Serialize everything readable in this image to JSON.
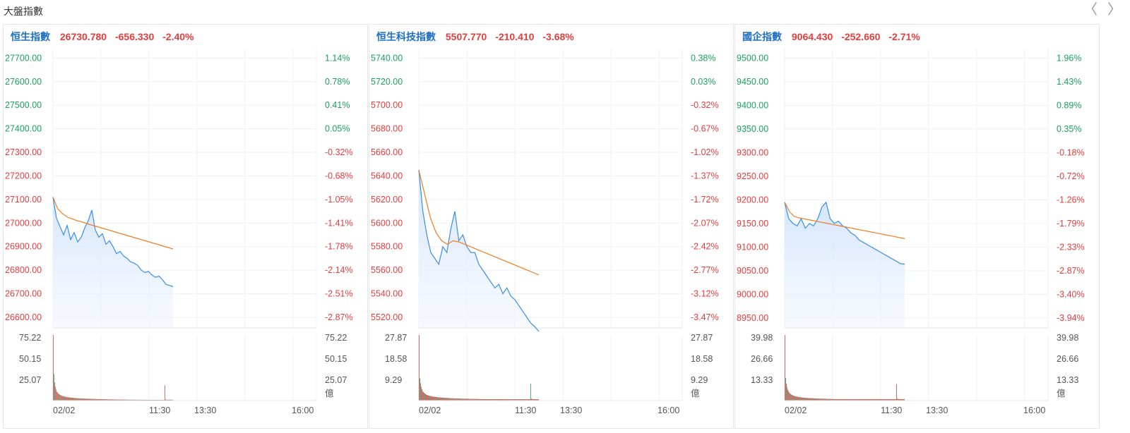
{
  "header": {
    "title": "大盤指數"
  },
  "nav": {
    "prev_icon": "〈",
    "next_icon": "〉"
  },
  "colors": {
    "name": "#1d6fc4",
    "down": "#e83b3b",
    "up": "#19a15f",
    "price_line": "#3a8ee6",
    "avg_line": "#f07c22",
    "grid": "#eef0f3"
  },
  "chart_data": [
    {
      "type": "line",
      "name": "恒生指數",
      "last": "26730.780",
      "change": "-656.330",
      "pct": "-2.40%",
      "price_ticks": [
        "27700.00",
        "27600.00",
        "27500.00",
        "27400.00",
        "27300.00",
        "27200.00",
        "27100.00",
        "27000.00",
        "26900.00",
        "26800.00",
        "26700.00",
        "26600.00"
      ],
      "pct_ticks": [
        "1.14%",
        "0.78%",
        "0.41%",
        "0.05%",
        "-0.32%",
        "-0.68%",
        "-1.05%",
        "-1.41%",
        "-1.78%",
        "-2.14%",
        "-2.51%",
        "-2.87%"
      ],
      "vol_ticks": [
        "75.22",
        "50.15",
        "25.07"
      ],
      "vol_unit": "億",
      "x_ticks": [
        "02/02",
        "11:30",
        "13:30",
        "16:00"
      ],
      "ylim": [
        26555,
        27740
      ],
      "vol_max": 75.22,
      "price": [
        27110,
        27020,
        26985,
        26950,
        26990,
        26930,
        26960,
        26920,
        26940,
        26980,
        27010,
        27055,
        26970,
        26940,
        26955,
        26910,
        26925,
        26900,
        26870,
        26880,
        26860,
        26850,
        26835,
        26830,
        26820,
        26800,
        26790,
        26795,
        26780,
        26770,
        26775,
        26760,
        26740,
        26735,
        26730
      ],
      "avg": [
        27110,
        27060,
        27040,
        27025,
        27018,
        27010,
        27005,
        26998,
        26992,
        26986,
        26980,
        26974,
        26968,
        26962,
        26956,
        26950,
        26944,
        26938,
        26932,
        26926,
        26920,
        26914,
        26908,
        26902,
        26896,
        26890
      ],
      "volume": [
        75.22,
        30.5,
        21.0,
        15.8,
        12.6,
        10.2,
        9.1,
        8.4,
        7.5,
        7.0,
        6.6,
        6.1,
        5.8,
        5.4,
        5.1,
        4.9,
        4.7,
        4.5,
        4.3,
        4.1,
        3.9,
        3.8,
        3.7,
        3.6,
        3.5,
        3.4,
        3.3,
        3.2,
        3.2,
        3.1,
        3.0,
        2.9,
        2.9,
        2.8,
        2.8,
        2.7,
        2.7,
        2.6,
        2.6,
        2.5,
        2.5,
        2.4,
        2.4,
        2.3,
        2.3,
        2.3,
        2.2,
        2.2,
        2.2,
        2.1,
        2.1,
        2.1,
        2.0,
        2.0,
        2.0,
        1.9,
        1.9,
        1.9,
        1.9,
        1.8,
        1.8,
        1.8,
        1.8,
        1.7,
        1.7,
        1.7,
        1.7,
        1.7,
        1.6,
        1.6,
        1.6,
        1.6,
        1.6,
        1.5,
        1.5,
        1.5,
        1.5,
        1.5,
        1.4,
        1.4,
        1.4,
        1.4,
        1.4,
        1.4,
        1.3,
        1.3,
        1.3,
        1.3,
        1.3,
        1.3,
        1.3,
        1.2,
        1.2,
        1.2,
        1.2,
        1.2,
        1.2,
        1.2,
        1.2,
        1.1,
        1.1,
        1.1,
        1.1,
        1.1,
        1.1,
        1.1,
        1.1,
        1.1,
        1.0,
        1.0,
        1.0,
        1.0,
        1.0,
        1.0,
        1.0,
        1.0,
        1.0,
        1.0,
        1.0,
        0.9,
        0.9,
        0.9,
        0.9,
        0.9,
        0.9,
        0.9,
        0.9,
        0.9,
        0.9,
        0.9,
        0.9,
        0.9,
        0.9,
        0.8,
        0.8,
        0.8,
        0.8,
        0.8,
        0.8,
        0.8,
        0.8,
        0.8,
        0.8,
        0.8,
        0.8,
        0.8,
        0.8,
        0.8,
        0.8,
        0.8,
        0.8,
        0.8,
        0.8,
        0.8,
        0.8,
        0.8,
        0.8,
        0.8,
        0.8,
        0.8,
        0.8,
        17.5,
        1.4,
        1.1,
        1.0,
        1.0,
        1.0,
        1.0,
        1.0,
        1.0,
        1.0,
        1.0,
        1.0
      ]
    },
    {
      "type": "line",
      "name": "恒生科技指數",
      "last": "5507.770",
      "change": "-210.410",
      "pct": "-3.68%",
      "price_ticks": [
        "5740.00",
        "5720.00",
        "5700.00",
        "5680.00",
        "5660.00",
        "5640.00",
        "5620.00",
        "5600.00",
        "5580.00",
        "5560.00",
        "5540.00",
        "5520.00"
      ],
      "pct_ticks": [
        "0.38%",
        "0.03%",
        "-0.32%",
        "-0.67%",
        "-1.02%",
        "-1.37%",
        "-1.72%",
        "-2.07%",
        "-2.42%",
        "-2.77%",
        "-3.12%",
        "-3.47%"
      ],
      "vol_ticks": [
        "27.87",
        "18.58",
        "9.29"
      ],
      "vol_unit": "億",
      "x_ticks": [
        "02/02",
        "11:30",
        "13:30",
        "16:00"
      ],
      "ylim": [
        5511,
        5748
      ],
      "vol_max": 27.87,
      "price": [
        5645,
        5610,
        5590,
        5575,
        5570,
        5565,
        5580,
        5575,
        5595,
        5610,
        5585,
        5590,
        5580,
        5575,
        5575,
        5565,
        5560,
        5555,
        5550,
        5545,
        5548,
        5540,
        5545,
        5538,
        5535,
        5530,
        5525,
        5520,
        5515,
        5512,
        5508
      ],
      "avg": [
        5645,
        5625,
        5605,
        5592,
        5585,
        5582,
        5585,
        5584,
        5582,
        5580,
        5578,
        5576,
        5574,
        5572,
        5570,
        5568,
        5566,
        5564,
        5562,
        5560,
        5558,
        5556
      ],
      "volume": [
        27.87,
        9.5,
        7.4,
        5.8,
        4.8,
        4.0,
        3.6,
        3.3,
        3.0,
        2.8,
        2.6,
        2.4,
        2.3,
        2.2,
        2.1,
        2.0,
        1.9,
        1.9,
        1.8,
        1.7,
        1.7,
        1.6,
        1.6,
        1.5,
        1.5,
        1.5,
        1.4,
        1.4,
        1.4,
        1.3,
        1.3,
        1.3,
        1.3,
        1.2,
        1.2,
        1.2,
        1.2,
        1.2,
        1.1,
        1.1,
        1.1,
        1.1,
        1.1,
        1.0,
        1.0,
        1.0,
        1.0,
        1.0,
        1.0,
        1.0,
        0.9,
        0.9,
        0.9,
        0.9,
        0.9,
        0.9,
        0.9,
        0.9,
        0.9,
        0.8,
        0.8,
        0.8,
        0.8,
        0.8,
        0.8,
        0.8,
        0.8,
        0.8,
        0.8,
        0.8,
        0.7,
        0.7,
        0.7,
        0.7,
        0.7,
        0.7,
        0.7,
        0.7,
        0.7,
        0.7,
        0.7,
        0.7,
        0.7,
        0.7,
        0.7,
        0.6,
        0.6,
        0.6,
        0.6,
        0.6,
        0.6,
        0.6,
        0.6,
        0.6,
        0.6,
        0.6,
        0.6,
        0.6,
        0.6,
        0.6,
        0.6,
        0.6,
        0.6,
        0.6,
        0.6,
        0.6,
        0.6,
        0.6,
        0.6,
        0.6,
        0.6,
        0.6,
        0.6,
        0.6,
        0.6,
        0.6,
        0.6,
        0.6,
        0.6,
        0.6,
        0.6,
        0.6,
        0.6,
        0.6,
        0.6,
        0.6,
        0.6,
        0.6,
        0.6,
        0.6,
        0.6,
        0.6,
        0.6,
        0.6,
        0.6,
        0.6,
        0.6,
        0.6,
        0.6,
        0.6,
        0.6,
        0.6,
        0.6,
        0.6,
        0.6,
        0.6,
        0.6,
        0.6,
        0.6,
        0.6,
        0.6,
        0.6,
        0.6,
        0.6,
        0.6,
        0.6,
        0.6,
        7.2,
        0.9,
        0.7,
        0.6,
        0.6,
        0.6,
        0.6,
        0.6,
        0.6,
        0.6,
        0.6,
        0.6
      ]
    },
    {
      "type": "line",
      "name": "國企指數",
      "last": "9064.430",
      "change": "-252.660",
      "pct": "-2.71%",
      "price_ticks": [
        "9500.00",
        "9450.00",
        "9400.00",
        "9350.00",
        "9300.00",
        "9250.00",
        "9200.00",
        "9150.00",
        "9100.00",
        "9050.00",
        "9000.00",
        "8950.00"
      ],
      "pct_ticks": [
        "1.96%",
        "1.43%",
        "0.89%",
        "0.35%",
        "-0.18%",
        "-0.72%",
        "-1.26%",
        "-1.79%",
        "-2.33%",
        "-2.87%",
        "-3.40%",
        "-3.94%"
      ],
      "vol_ticks": [
        "39.98",
        "26.66",
        "13.33"
      ],
      "vol_unit": "億",
      "x_ticks": [
        "02/02",
        "11:30",
        "13:30",
        "16:00"
      ],
      "ylim": [
        8929,
        9520
      ],
      "vol_max": 39.98,
      "price": [
        9195,
        9160,
        9150,
        9145,
        9160,
        9140,
        9150,
        9145,
        9160,
        9185,
        9195,
        9160,
        9150,
        9155,
        9145,
        9140,
        9130,
        9125,
        9115,
        9110,
        9105,
        9100,
        9095,
        9090,
        9085,
        9080,
        9075,
        9070,
        9065,
        9064
      ],
      "avg": [
        9195,
        9175,
        9165,
        9162,
        9160,
        9158,
        9156,
        9154,
        9152,
        9150,
        9148,
        9146,
        9144,
        9142,
        9140,
        9138,
        9136,
        9134,
        9132,
        9130,
        9128,
        9126,
        9124,
        9122,
        9120,
        9118
      ],
      "volume": [
        39.98,
        13.7,
        10.3,
        8.0,
        6.6,
        5.6,
        4.9,
        4.4,
        4.0,
        3.7,
        3.4,
        3.2,
        3.0,
        2.9,
        2.7,
        2.6,
        2.5,
        2.4,
        2.3,
        2.2,
        2.1,
        2.1,
        2.0,
        1.9,
        1.9,
        1.8,
        1.8,
        1.7,
        1.7,
        1.7,
        1.6,
        1.6,
        1.6,
        1.5,
        1.5,
        1.5,
        1.5,
        1.4,
        1.4,
        1.4,
        1.4,
        1.3,
        1.3,
        1.3,
        1.3,
        1.3,
        1.2,
        1.2,
        1.2,
        1.2,
        1.2,
        1.2,
        1.1,
        1.1,
        1.1,
        1.1,
        1.1,
        1.1,
        1.1,
        1.0,
        1.0,
        1.0,
        1.0,
        1.0,
        1.0,
        1.0,
        1.0,
        1.0,
        1.0,
        0.9,
        0.9,
        0.9,
        0.9,
        0.9,
        0.9,
        0.9,
        0.9,
        0.9,
        0.9,
        0.9,
        0.9,
        0.9,
        0.9,
        0.9,
        0.9,
        0.9,
        0.9,
        0.9,
        0.9,
        0.9,
        0.9,
        0.9,
        0.9,
        0.9,
        0.9,
        0.9,
        0.9,
        0.9,
        0.9,
        0.9,
        0.9,
        0.9,
        0.9,
        0.9,
        0.9,
        0.9,
        0.9,
        0.9,
        0.9,
        0.9,
        0.9,
        0.9,
        0.9,
        0.9,
        0.9,
        0.9,
        0.9,
        0.9,
        0.9,
        0.9,
        0.9,
        0.9,
        0.9,
        0.9,
        0.9,
        0.9,
        0.9,
        0.9,
        0.9,
        0.9,
        0.9,
        0.9,
        0.9,
        0.9,
        0.9,
        0.9,
        0.9,
        0.9,
        0.9,
        0.9,
        0.9,
        0.9,
        0.9,
        0.9,
        0.9,
        0.9,
        0.9,
        0.9,
        0.9,
        0.9,
        0.9,
        0.9,
        0.9,
        0.9,
        0.9,
        0.9,
        0.9,
        0.9,
        10.1,
        1.2,
        1.0,
        0.9,
        0.9,
        0.9,
        0.9,
        0.9,
        0.9,
        0.9,
        0.9,
        0.9
      ]
    }
  ]
}
